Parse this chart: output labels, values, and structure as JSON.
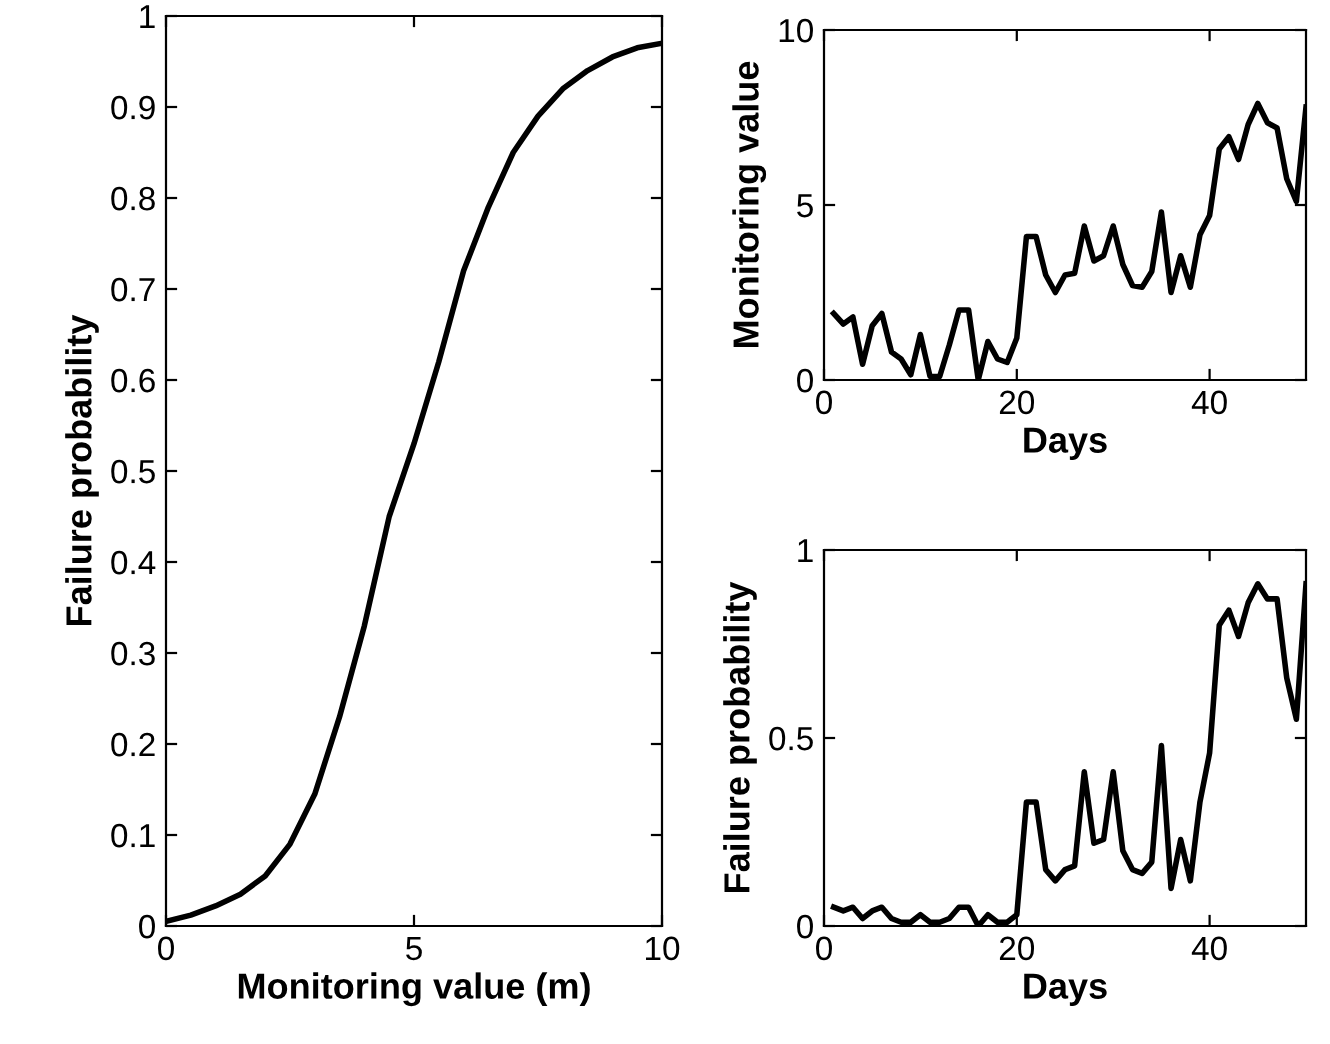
{
  "chart_data": [
    {
      "type": "line",
      "xlabel": "Monitoring value (m)",
      "ylabel": "Failure probability",
      "xlim": [
        0,
        10
      ],
      "ylim": [
        0,
        1
      ],
      "xticks": [
        0,
        5,
        10
      ],
      "yticks": [
        0,
        0.1,
        0.2,
        0.3,
        0.4,
        0.5,
        0.6,
        0.7,
        0.8,
        0.9,
        1
      ],
      "grid": false,
      "legend": false,
      "x": [
        0,
        0.5,
        1,
        1.5,
        2,
        2.5,
        3,
        3.5,
        4,
        4.5,
        5,
        5.5,
        6,
        6.5,
        7,
        7.5,
        8,
        8.5,
        9,
        9.5,
        10
      ],
      "series": [
        {
          "color": "#000000",
          "values": [
            0.005,
            0.012,
            0.022,
            0.035,
            0.055,
            0.09,
            0.145,
            0.23,
            0.33,
            0.45,
            0.53,
            0.62,
            0.72,
            0.79,
            0.85,
            0.89,
            0.92,
            0.94,
            0.955,
            0.965,
            0.97
          ]
        }
      ]
    },
    {
      "type": "line",
      "xlabel": "Days",
      "ylabel": "Monitoring value",
      "xlim": [
        0,
        50
      ],
      "ylim": [
        0,
        10
      ],
      "xticks": [
        0,
        20,
        40
      ],
      "yticks": [
        0,
        5,
        10
      ],
      "grid": false,
      "legend": false,
      "x": [
        1,
        2,
        3,
        4,
        5,
        6,
        7,
        8,
        9,
        10,
        11,
        12,
        13,
        14,
        15,
        16,
        17,
        18,
        19,
        20,
        21,
        22,
        23,
        24,
        25,
        26,
        27,
        28,
        29,
        30,
        31,
        32,
        33,
        34,
        35,
        36,
        37,
        38,
        39,
        40,
        41,
        42,
        43,
        44,
        45,
        46,
        47,
        48,
        49,
        50
      ],
      "series": [
        {
          "color": "#000000",
          "values": [
            1.9,
            1.6,
            1.8,
            0.45,
            1.55,
            1.9,
            0.8,
            0.6,
            0.15,
            1.3,
            0.1,
            0.1,
            1.0,
            2.0,
            2.0,
            0,
            1.1,
            0.6,
            0.5,
            1.2,
            4.1,
            4.1,
            3.0,
            2.5,
            3.0,
            3.05,
            4.4,
            3.4,
            3.55,
            4.4,
            3.3,
            2.7,
            2.65,
            3.1,
            4.8,
            2.5,
            3.55,
            2.65,
            4.15,
            4.7,
            6.6,
            6.95,
            6.3,
            7.3,
            7.9,
            7.35,
            7.2,
            5.75,
            5.1,
            7.8
          ]
        }
      ]
    },
    {
      "type": "line",
      "xlabel": "Days",
      "ylabel": "Failure probability",
      "xlim": [
        0,
        50
      ],
      "ylim": [
        0,
        1
      ],
      "xticks": [
        0,
        20,
        40
      ],
      "yticks": [
        0,
        0.5,
        1
      ],
      "grid": false,
      "legend": false,
      "x": [
        1,
        2,
        3,
        4,
        5,
        6,
        7,
        8,
        9,
        10,
        11,
        12,
        13,
        14,
        15,
        16,
        17,
        18,
        19,
        20,
        21,
        22,
        23,
        24,
        25,
        26,
        27,
        28,
        29,
        30,
        31,
        32,
        33,
        34,
        35,
        36,
        37,
        38,
        39,
        40,
        41,
        42,
        43,
        44,
        45,
        46,
        47,
        48,
        49,
        50
      ],
      "series": [
        {
          "color": "#000000",
          "values": [
            0.05,
            0.04,
            0.05,
            0.02,
            0.04,
            0.05,
            0.02,
            0.01,
            0.01,
            0.03,
            0.01,
            0.01,
            0.02,
            0.05,
            0.05,
            0.0,
            0.03,
            0.01,
            0.01,
            0.03,
            0.33,
            0.33,
            0.15,
            0.12,
            0.15,
            0.16,
            0.41,
            0.22,
            0.23,
            0.41,
            0.2,
            0.15,
            0.14,
            0.17,
            0.48,
            0.1,
            0.23,
            0.12,
            0.33,
            0.46,
            0.8,
            0.84,
            0.77,
            0.86,
            0.91,
            0.87,
            0.87,
            0.66,
            0.55,
            0.91
          ]
        }
      ]
    }
  ]
}
